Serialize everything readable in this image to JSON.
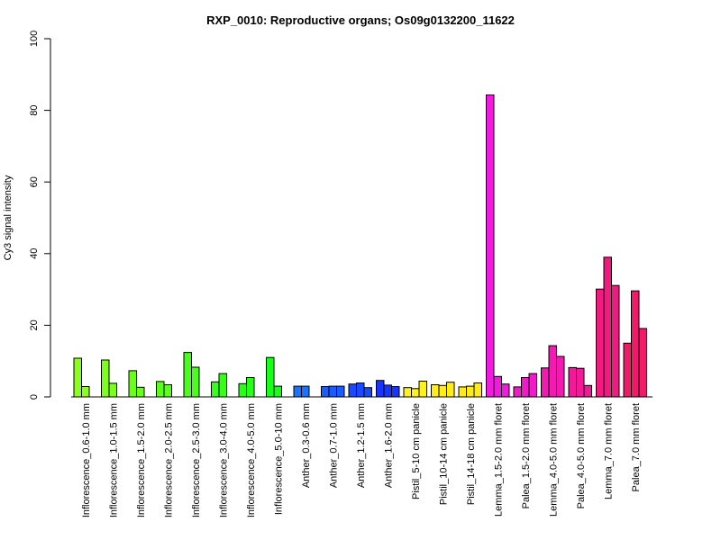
{
  "chart_data": {
    "type": "bar",
    "title": "RXP_0010: Reproductive organs; Os09g0132200_11622",
    "xlabel": "",
    "ylabel": "Cy3 signal intensity",
    "ylim": [
      0,
      100
    ],
    "yticks": [
      "0",
      "20",
      "40",
      "60",
      "80",
      "100"
    ],
    "grid": false,
    "legend": "none",
    "groups": [
      {
        "label": "Inflorescence_0.6-1.0 mm",
        "color": "#8cff1a",
        "values": [
          10.8,
          2.9
        ]
      },
      {
        "label": "Inflorescence_1.0-1.5 mm",
        "color": "#7cff1a",
        "values": [
          10.3,
          3.8
        ]
      },
      {
        "label": "Inflorescence_1.5-2.0 mm",
        "color": "#6aff1a",
        "values": [
          7.3,
          2.7
        ]
      },
      {
        "label": "Inflorescence_2.0-2.5 mm",
        "color": "#5aff1a",
        "values": [
          4.3,
          3.4
        ]
      },
      {
        "label": "Inflorescence_2.5-3.0 mm",
        "color": "#48ff1a",
        "values": [
          12.4,
          8.3
        ]
      },
      {
        "label": "Inflorescence_3.0-4.0 mm",
        "color": "#38ff1a",
        "values": [
          4.2,
          6.5
        ]
      },
      {
        "label": "Inflorescence_4.0-5.0 mm",
        "color": "#28ff1a",
        "values": [
          3.7,
          5.4
        ]
      },
      {
        "label": "Inflorescence_5.0-10 mm",
        "color": "#18ff1a",
        "values": [
          11.0,
          3.0
        ]
      },
      {
        "label": "Anther_0.3-0.6 mm",
        "color": "#1a74ff",
        "values": [
          3.0,
          3.0
        ]
      },
      {
        "label": "Anther_0.7-1.0 mm",
        "color": "#1a5cff",
        "values": [
          2.9,
          3.0,
          3.0
        ]
      },
      {
        "label": "Anther_1.2-1.5 mm",
        "color": "#1a48ff",
        "values": [
          3.6,
          3.9,
          2.6
        ]
      },
      {
        "label": "Anther_1.6-2.0 mm",
        "color": "#1a34ff",
        "values": [
          4.6,
          3.3,
          2.9
        ]
      },
      {
        "label": "Pistil_5-10 cm panicle",
        "color": "#fff21a",
        "values": [
          2.6,
          2.3,
          4.4
        ]
      },
      {
        "label": "Pistil_10-14 cm panicle",
        "color": "#ffee1a",
        "values": [
          3.4,
          3.2,
          4.1
        ]
      },
      {
        "label": "Pistil_14-18 cm panicle",
        "color": "#ffea1a",
        "values": [
          2.8,
          3.0,
          3.9
        ]
      },
      {
        "label": "Lemma_1.5-2.0 mm floret",
        "color": "#f21ae0",
        "values": [
          84.3,
          5.7,
          3.6
        ]
      },
      {
        "label": "Palea_1.5-2.0 mm floret",
        "color": "#f21ac8",
        "values": [
          2.8,
          5.4,
          6.5
        ]
      },
      {
        "label": "Lemma_4.0-5.0 mm floret",
        "color": "#f21ab0",
        "values": [
          8.1,
          14.3,
          11.3
        ]
      },
      {
        "label": "Palea_4.0-5.0 mm floret",
        "color": "#f21a98",
        "values": [
          8.2,
          8.0,
          3.2
        ]
      },
      {
        "label": "Lemma_7.0 mm floret",
        "color": "#f21a80",
        "values": [
          30.1,
          39.0,
          31.1
        ]
      },
      {
        "label": "Palea_7.0 mm floret",
        "color": "#f21a68",
        "values": [
          15.0,
          29.6,
          19.1
        ]
      }
    ]
  }
}
